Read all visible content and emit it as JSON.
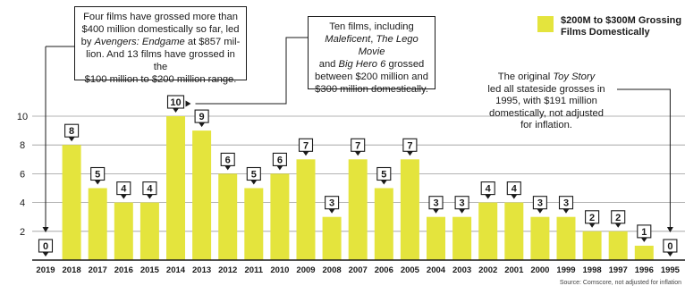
{
  "chart_data": {
    "type": "bar",
    "categories": [
      "2019",
      "2018",
      "2017",
      "2016",
      "2015",
      "2014",
      "2013",
      "2012",
      "2011",
      "2010",
      "2009",
      "2008",
      "2007",
      "2006",
      "2005",
      "2004",
      "2003",
      "2002",
      "2001",
      "2000",
      "1999",
      "1998",
      "1997",
      "1996",
      "1995"
    ],
    "series": [
      {
        "name": "$200M to $300M Grossing Films Domestically",
        "values": [
          0,
          8,
          5,
          4,
          4,
          10,
          9,
          6,
          5,
          6,
          7,
          3,
          7,
          5,
          7,
          3,
          3,
          4,
          4,
          3,
          3,
          2,
          2,
          1,
          0
        ]
      }
    ],
    "yticks": [
      2,
      4,
      6,
      8,
      10
    ],
    "ylim": [
      0,
      11.5
    ],
    "grid": true,
    "legend_position": "top-right",
    "bar_color": "#e4e43d",
    "annotations": {
      "a1_l1": "Four films have grossed more than",
      "a1_l2": "$400 million domestically so far, led",
      "a1_l3_pre": "by ",
      "a1_l3_em": "Avengers: Endgame",
      "a1_l3_post": " at $857 mil-",
      "a1_l4": "lion. And 13 films have grossed in the",
      "a1_l5": "$100 million to $200 million range.",
      "a2_l1": "Ten films, including",
      "a2_l2_em1": "Maleficent",
      "a2_l2_mid": ", ",
      "a2_l2_em2": "The Lego Movie",
      "a2_l3_pre": "and ",
      "a2_l3_em": "Big Hero 6",
      "a2_l3_post": " grossed",
      "a2_l4": "between $200 million and",
      "a2_l5": "$300 million domestically.",
      "a3_l1_pre": "The original ",
      "a3_l1_em": "Toy Story",
      "a3_l2": "led all stateside grosses in",
      "a3_l3": "1995, with $191 million",
      "a3_l4": "domestically, not adjusted",
      "a3_l5": "for inflation."
    },
    "source": "Source: Comscore, not adjusted for inflation"
  }
}
